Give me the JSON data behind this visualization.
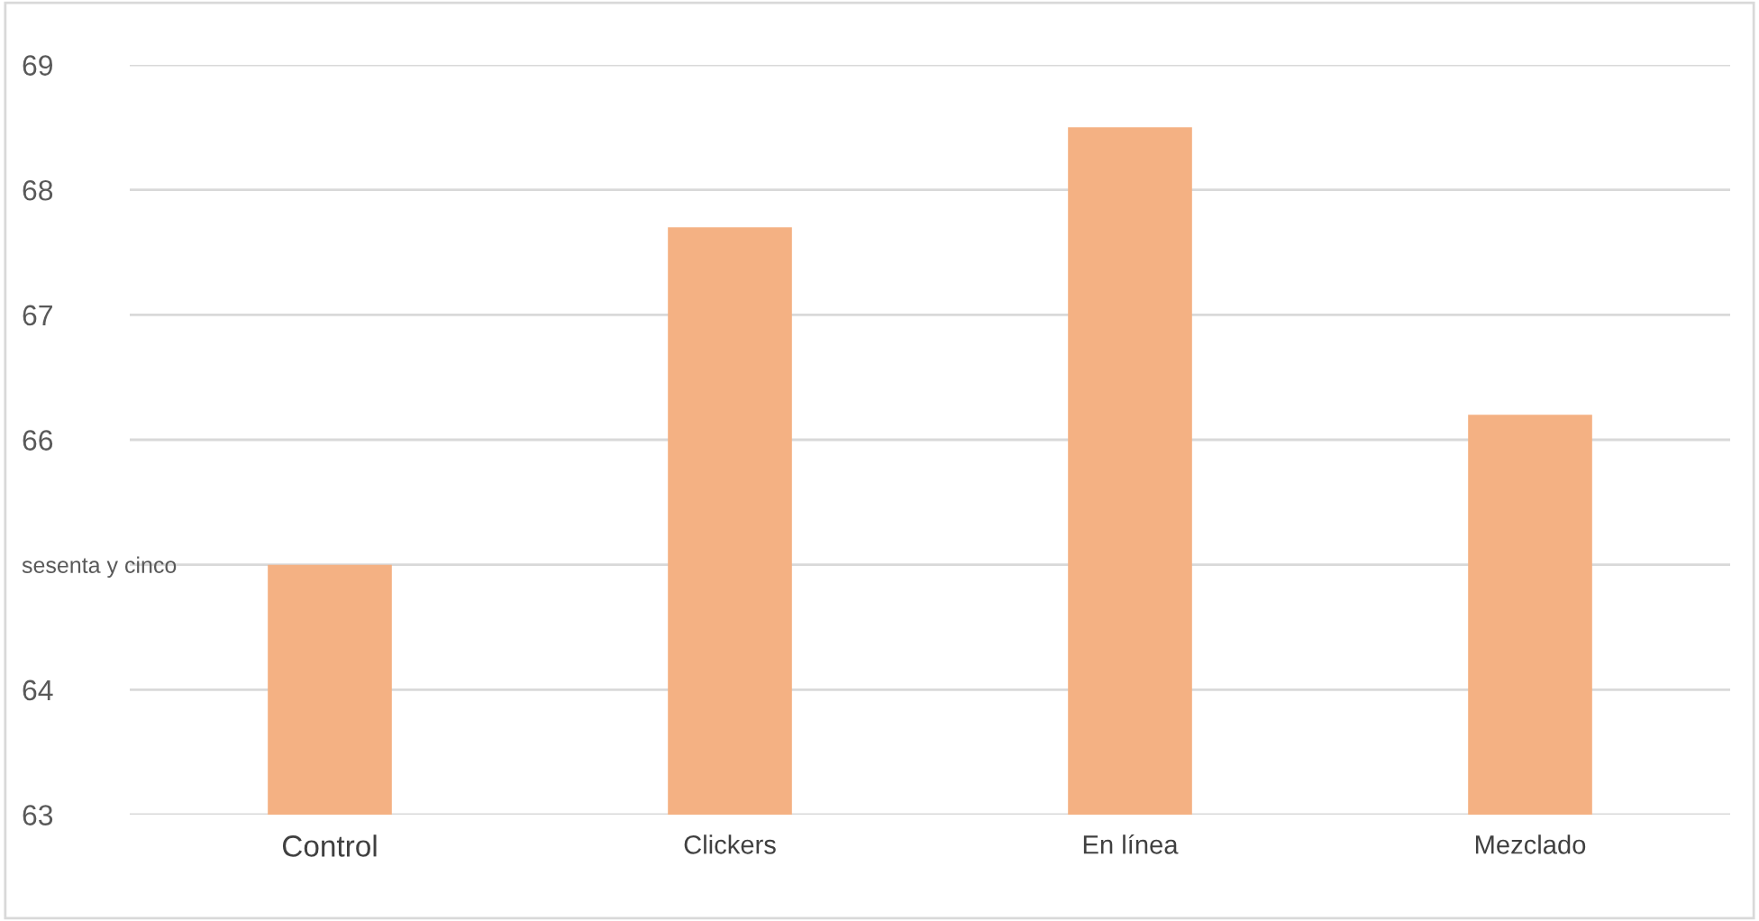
{
  "chart_data": {
    "type": "bar",
    "categories": [
      "Control",
      "Clickers",
      "En línea",
      "Mezclado"
    ],
    "values": [
      65.0,
      67.7,
      68.5,
      66.2
    ],
    "color": "#f4b183",
    "ylim": [
      63,
      69
    ],
    "yticks": [
      63,
      64,
      {
        "value": 65,
        "label": "sesenta y cinco"
      },
      66,
      67,
      68,
      69
    ],
    "grid": "y",
    "legend": false
  }
}
